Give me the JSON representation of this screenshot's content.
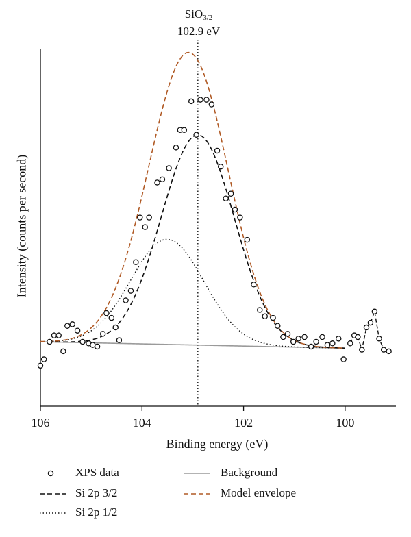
{
  "chart_data": {
    "type": "line",
    "title": "",
    "xlabel": "Binding energy (eV)",
    "ylabel": "Intensity (counts per second)",
    "xlim": [
      106,
      99
    ],
    "x_reversed": true,
    "ylim": [
      0,
      1
    ],
    "y_ticks_shown": false,
    "xticks": [
      "106",
      "104",
      "102",
      "100"
    ],
    "xtick_values": [
      106,
      104,
      102,
      100
    ],
    "annotation": {
      "species": "SiO",
      "subscript": "3/2",
      "energy": "102.9 eV",
      "line_x": 102.9
    },
    "series": [
      {
        "name": "XPS data",
        "style": "open-circle",
        "color": "#111111",
        "points": [
          [
            106.0,
            0.11
          ],
          [
            105.93,
            0.13
          ],
          [
            105.82,
            0.185
          ],
          [
            105.73,
            0.205
          ],
          [
            105.64,
            0.205
          ],
          [
            105.55,
            0.155
          ],
          [
            105.47,
            0.235
          ],
          [
            105.37,
            0.24
          ],
          [
            105.27,
            0.22
          ],
          [
            105.17,
            0.185
          ],
          [
            105.05,
            0.18
          ],
          [
            104.97,
            0.175
          ],
          [
            104.88,
            0.17
          ],
          [
            104.77,
            0.21
          ],
          [
            104.7,
            0.275
          ],
          [
            104.6,
            0.26
          ],
          [
            104.52,
            0.23
          ],
          [
            104.45,
            0.19
          ],
          [
            104.32,
            0.315
          ],
          [
            104.22,
            0.345
          ],
          [
            104.12,
            0.435
          ],
          [
            104.04,
            0.575
          ],
          [
            103.94,
            0.545
          ],
          [
            103.86,
            0.575
          ],
          [
            103.7,
            0.685
          ],
          [
            103.6,
            0.695
          ],
          [
            103.47,
            0.73
          ],
          [
            103.33,
            0.795
          ],
          [
            103.25,
            0.85
          ],
          [
            103.17,
            0.85
          ],
          [
            103.03,
            0.94
          ],
          [
            102.93,
            0.835
          ],
          [
            102.85,
            0.945
          ],
          [
            102.73,
            0.945
          ],
          [
            102.63,
            0.93
          ],
          [
            102.52,
            0.785
          ],
          [
            102.45,
            0.735
          ],
          [
            102.35,
            0.635
          ],
          [
            102.25,
            0.65
          ],
          [
            102.17,
            0.6
          ],
          [
            102.07,
            0.575
          ],
          [
            101.93,
            0.505
          ],
          [
            101.8,
            0.365
          ],
          [
            101.68,
            0.285
          ],
          [
            101.58,
            0.265
          ],
          [
            101.42,
            0.26
          ],
          [
            101.33,
            0.235
          ],
          [
            101.22,
            0.2
          ],
          [
            101.13,
            0.21
          ],
          [
            101.02,
            0.185
          ],
          [
            100.92,
            0.195
          ],
          [
            100.8,
            0.2
          ],
          [
            100.67,
            0.17
          ],
          [
            100.57,
            0.185
          ],
          [
            100.45,
            0.2
          ],
          [
            100.35,
            0.175
          ],
          [
            100.25,
            0.18
          ],
          [
            100.13,
            0.195
          ],
          [
            100.03,
            0.13
          ],
          [
            99.9,
            0.18
          ],
          [
            99.82,
            0.205
          ],
          [
            99.75,
            0.2
          ],
          [
            99.67,
            0.16
          ],
          [
            99.58,
            0.23
          ],
          [
            99.5,
            0.245
          ],
          [
            99.42,
            0.28
          ],
          [
            99.33,
            0.195
          ],
          [
            99.24,
            0.16
          ],
          [
            99.14,
            0.155
          ]
        ]
      },
      {
        "name": "Si 2p 3/2",
        "style": "dashed",
        "color": "#111111",
        "center": 102.9,
        "amplitude": 0.66,
        "sigma": 0.72
      },
      {
        "name": "Si 2p 1/2",
        "style": "dotted",
        "color": "#111111",
        "center": 103.5,
        "amplitude": 0.33,
        "sigma": 0.72
      },
      {
        "name": "Background",
        "style": "solid",
        "color": "#9a9a9a",
        "line": [
          [
            106.0,
            0.185
          ],
          [
            100.0,
            0.165
          ]
        ]
      },
      {
        "name": "Model envelope",
        "style": "dashed",
        "color": "#b05a25"
      }
    ],
    "legend": {
      "placement": "bottom",
      "items": [
        {
          "label": "XPS data",
          "marker": "circle"
        },
        {
          "label": "Background",
          "marker": "solid-gray"
        },
        {
          "label": "Si 2p 3/2",
          "marker": "dashed-black"
        },
        {
          "label": "Model envelope",
          "marker": "dashed-orange"
        },
        {
          "label": "Si 2p 1/2",
          "marker": "dotted-black"
        }
      ]
    }
  }
}
